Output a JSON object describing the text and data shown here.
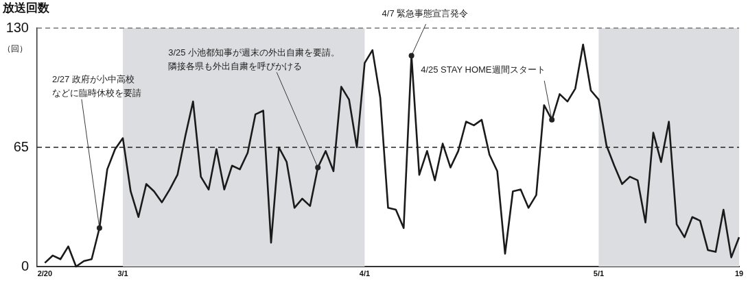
{
  "chart_data": {
    "type": "line",
    "title": "放送回数",
    "ylabel": "（回）",
    "x": [
      "--02-20",
      "--02-21",
      "--02-22",
      "--02-23",
      "--02-24",
      "--02-25",
      "--02-26",
      "--02-27",
      "--02-28",
      "--02-29",
      "--03-01",
      "--03-02",
      "--03-03",
      "--03-04",
      "--03-05",
      "--03-06",
      "--03-07",
      "--03-08",
      "--03-09",
      "--03-10",
      "--03-11",
      "--03-12",
      "--03-13",
      "--03-14",
      "--03-15",
      "--03-16",
      "--03-17",
      "--03-18",
      "--03-19",
      "--03-20",
      "--03-21",
      "--03-22",
      "--03-23",
      "--03-24",
      "--03-25",
      "--03-26",
      "--03-27",
      "--03-28",
      "--03-29",
      "--03-30",
      "--03-31",
      "--04-01",
      "--04-02",
      "--04-03",
      "--04-04",
      "--04-05",
      "--04-06",
      "--04-07",
      "--04-08",
      "--04-09",
      "--04-10",
      "--04-11",
      "--04-12",
      "--04-13",
      "--04-14",
      "--04-15",
      "--04-16",
      "--04-17",
      "--04-18",
      "--04-19",
      "--04-20",
      "--04-21",
      "--04-22",
      "--04-23",
      "--04-24",
      "--04-25",
      "--04-26",
      "--04-27",
      "--04-28",
      "--04-29",
      "--04-30",
      "--05-01",
      "--05-02",
      "--05-03",
      "--05-04",
      "--05-05",
      "--05-06",
      "--05-07",
      "--05-08",
      "--05-09",
      "--05-10",
      "--05-11",
      "--05-12",
      "--05-13",
      "--05-14",
      "--05-15",
      "--05-16",
      "--05-17",
      "--05-18",
      "--05-19"
    ],
    "values": [
      2,
      6,
      4,
      11,
      0,
      3,
      4,
      21,
      53,
      64,
      70,
      41,
      27,
      45,
      41,
      35,
      42,
      50,
      71,
      90,
      49,
      42,
      64,
      42,
      55,
      53,
      62,
      83,
      85,
      13,
      65,
      57,
      32,
      37,
      33,
      54,
      63,
      52,
      98,
      91,
      65,
      111,
      118,
      92,
      32,
      31,
      21,
      115,
      50,
      63,
      47,
      67,
      54,
      63,
      79,
      77,
      80,
      61,
      52,
      7,
      41,
      42,
      32,
      39,
      88,
      80,
      94,
      90,
      97,
      121,
      96,
      91,
      66,
      55,
      45,
      49,
      47,
      24,
      73,
      57,
      79,
      23,
      16,
      27,
      25,
      9,
      8,
      31,
      5,
      16
    ],
    "color": "#1a1a1a",
    "marker": "none",
    "xlim": [
      "--02-19",
      "--05-19"
    ],
    "xticks": [
      {
        "value": "--02-20",
        "label": "2/20"
      },
      {
        "value": "--03-01",
        "label": "3/1"
      },
      {
        "value": "--04-01",
        "label": "4/1"
      },
      {
        "value": "--05-01",
        "label": "5/1"
      },
      {
        "value": "--05-19",
        "label": "19"
      }
    ],
    "ylim": [
      0,
      130
    ],
    "yticks": [
      0,
      65,
      130
    ],
    "grid": false,
    "bands": [
      {
        "axis": "x",
        "from": "--03-01",
        "to": "--04-01",
        "color": "#dcdde0"
      },
      {
        "axis": "x",
        "from": "--05-01",
        "to": "--05-19",
        "color": "#dcdde0"
      }
    ],
    "ref_lines": [
      {
        "axis": "y",
        "value": 130,
        "color": "#777777",
        "line_style": "dashed"
      },
      {
        "axis": "y",
        "value": 65,
        "color": "#222222",
        "line_style": "dashed"
      }
    ],
    "annotations": [
      {
        "text": "2/27 政府が小中高校などに臨時休校を要請",
        "x": "--02-27",
        "y": 21
      },
      {
        "text": "3/25 小池都知事が週末の外出自粛を要請。隣接各県も外出自粛を呼びかける",
        "x": "--03-26",
        "y": 54
      },
      {
        "text": "4/7 緊急事態宣言発令",
        "x": "--04-07",
        "y": 115
      },
      {
        "text": "4/25 STAY HOME週間スタート",
        "x": "--04-25",
        "y": 80
      }
    ]
  }
}
